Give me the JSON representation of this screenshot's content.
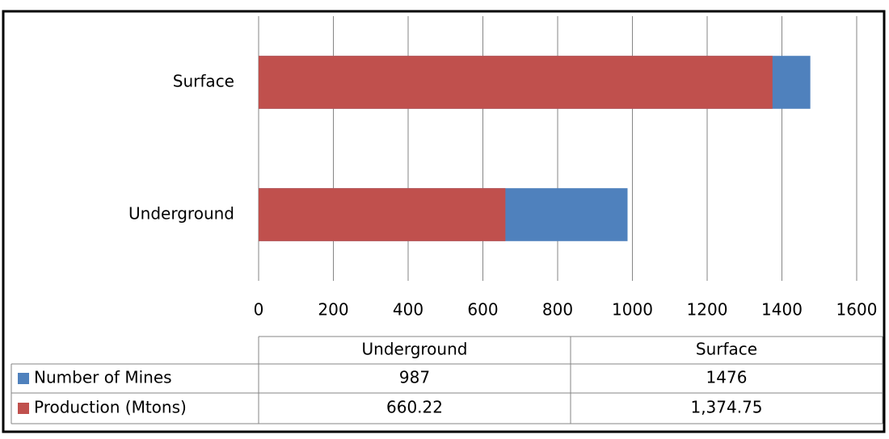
{
  "chart_data": {
    "type": "bar",
    "orientation": "horizontal",
    "overlap": true,
    "categories": [
      "Underground",
      "Surface"
    ],
    "series": [
      {
        "name": "Number of Mines",
        "color": "#4f81bd",
        "values": [
          987,
          1476
        ]
      },
      {
        "name": "Production (Mtons)",
        "color": "#c0504d",
        "values": [
          660.22,
          1374.75
        ],
        "value_labels": [
          "660.22",
          "1,374.75"
        ]
      }
    ],
    "xlim": [
      0,
      1600
    ],
    "xticks": [
      0,
      200,
      400,
      600,
      800,
      1000,
      1200,
      1400,
      1600
    ],
    "grid": true,
    "data_table": true
  }
}
